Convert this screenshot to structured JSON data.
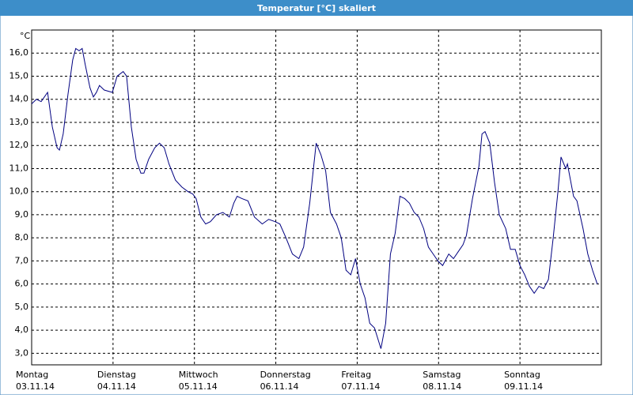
{
  "chart_data": {
    "type": "line",
    "title": "Temperatur [°C] skaliert",
    "y_label": "°C",
    "x": [
      0,
      1.4,
      2.8,
      4.7,
      6.1,
      7.5,
      8.2,
      9.3,
      10.7,
      12.1,
      13.0,
      14.0,
      14.9,
      15.8,
      17.2,
      18.2,
      19.1,
      20.0,
      21.4,
      23.8,
      25.2,
      27.0,
      28.0,
      29.4,
      30.8,
      32.2,
      33.1,
      34.5,
      36.3,
      37.7,
      39.1,
      40.5,
      42.4,
      44.3,
      46.1,
      47.5,
      48.5,
      49.9,
      51.3,
      52.7,
      54.5,
      56.4,
      58.3,
      59.6,
      60.6,
      62.0,
      63.8,
      65.7,
      68.0,
      69.9,
      71.8,
      73.2,
      75.0,
      76.9,
      78.8,
      80.2,
      82.0,
      83.9,
      85.3,
      86.7,
      88.1,
      89.9,
      91.3,
      92.7,
      94.1,
      95.5,
      96.9,
      98.3,
      99.7,
      101.1,
      103.0,
      104.4,
      105.8,
      107.2,
      108.6,
      110.0,
      111.4,
      112.8,
      114.2,
      115.6,
      117.0,
      118.4,
      119.8,
      121.2,
      123.0,
      124.4,
      125.8,
      127.2,
      128.2,
      130.0,
      131.9,
      132.8,
      133.7,
      135.1,
      136.5,
      137.9,
      139.8,
      141.2,
      142.6,
      144.0,
      145.4,
      146.8,
      148.2,
      149.6,
      151.0,
      152.4,
      153.8,
      155.2,
      156.1,
      157.5,
      158.0,
      159.8,
      160.8,
      162.6,
      164.0,
      165.4,
      166.8
    ],
    "values": [
      13.8,
      14.0,
      13.9,
      14.3,
      12.8,
      11.9,
      11.8,
      12.5,
      14.2,
      15.7,
      16.2,
      16.1,
      16.2,
      15.5,
      14.5,
      14.1,
      14.3,
      14.6,
      14.4,
      14.3,
      15.0,
      15.2,
      15.0,
      12.8,
      11.4,
      10.8,
      10.8,
      11.4,
      11.9,
      12.1,
      11.9,
      11.2,
      10.5,
      10.2,
      10.0,
      9.9,
      9.7,
      8.9,
      8.6,
      8.7,
      9.0,
      9.1,
      8.9,
      9.5,
      9.8,
      9.7,
      9.6,
      8.9,
      8.6,
      8.8,
      8.7,
      8.6,
      8.0,
      7.3,
      7.1,
      7.6,
      9.5,
      12.1,
      11.6,
      10.9,
      9.1,
      8.6,
      8.0,
      6.6,
      6.4,
      7.1,
      6.0,
      5.4,
      4.3,
      4.1,
      3.2,
      4.3,
      7.3,
      8.2,
      9.8,
      9.7,
      9.5,
      9.1,
      8.9,
      8.4,
      7.6,
      7.3,
      7.0,
      6.8,
      7.3,
      7.1,
      7.4,
      7.7,
      8.1,
      9.7,
      11.1,
      12.5,
      12.6,
      12.1,
      10.4,
      9.0,
      8.4,
      7.5,
      7.5,
      6.8,
      6.4,
      5.9,
      5.6,
      5.9,
      5.8,
      6.2,
      8.0,
      10.0,
      11.5,
      11.0,
      11.2,
      9.8,
      9.6,
      8.4,
      7.3,
      6.6,
      6.0
    ],
    "color": "#000080",
    "xlim": [
      0,
      168
    ],
    "xticks": [
      {
        "value": 0,
        "label": "Montag"
      },
      {
        "value": 24,
        "label": "Dienstag"
      },
      {
        "value": 48,
        "label": "Mittwoch"
      },
      {
        "value": 72,
        "label": "Donnerstag"
      },
      {
        "value": 96,
        "label": "Freitag"
      },
      {
        "value": 120,
        "label": "Samstag"
      },
      {
        "value": 144,
        "label": "Sonntag"
      }
    ],
    "xtick_dates": [
      "03.11.14",
      "04.11.14",
      "05.11.14",
      "06.11.14",
      "07.11.14",
      "08.11.14",
      "09.11.14"
    ],
    "ylim": [
      2.5,
      17
    ],
    "yticks": [
      {
        "value": 3,
        "label": "3,0"
      },
      {
        "value": 4,
        "label": "4,0"
      },
      {
        "value": 5,
        "label": "5,0"
      },
      {
        "value": 6,
        "label": "6,0"
      },
      {
        "value": 7,
        "label": "7,0"
      },
      {
        "value": 8,
        "label": "8,0"
      },
      {
        "value": 9,
        "label": "9,0"
      },
      {
        "value": 10,
        "label": "10,0"
      },
      {
        "value": 11,
        "label": "11,0"
      },
      {
        "value": 12,
        "label": "12,0"
      },
      {
        "value": 13,
        "label": "13,0"
      },
      {
        "value": 14,
        "label": "14,0"
      },
      {
        "value": 15,
        "label": "15,0"
      },
      {
        "value": 16,
        "label": "16,0"
      }
    ],
    "grid": true
  }
}
